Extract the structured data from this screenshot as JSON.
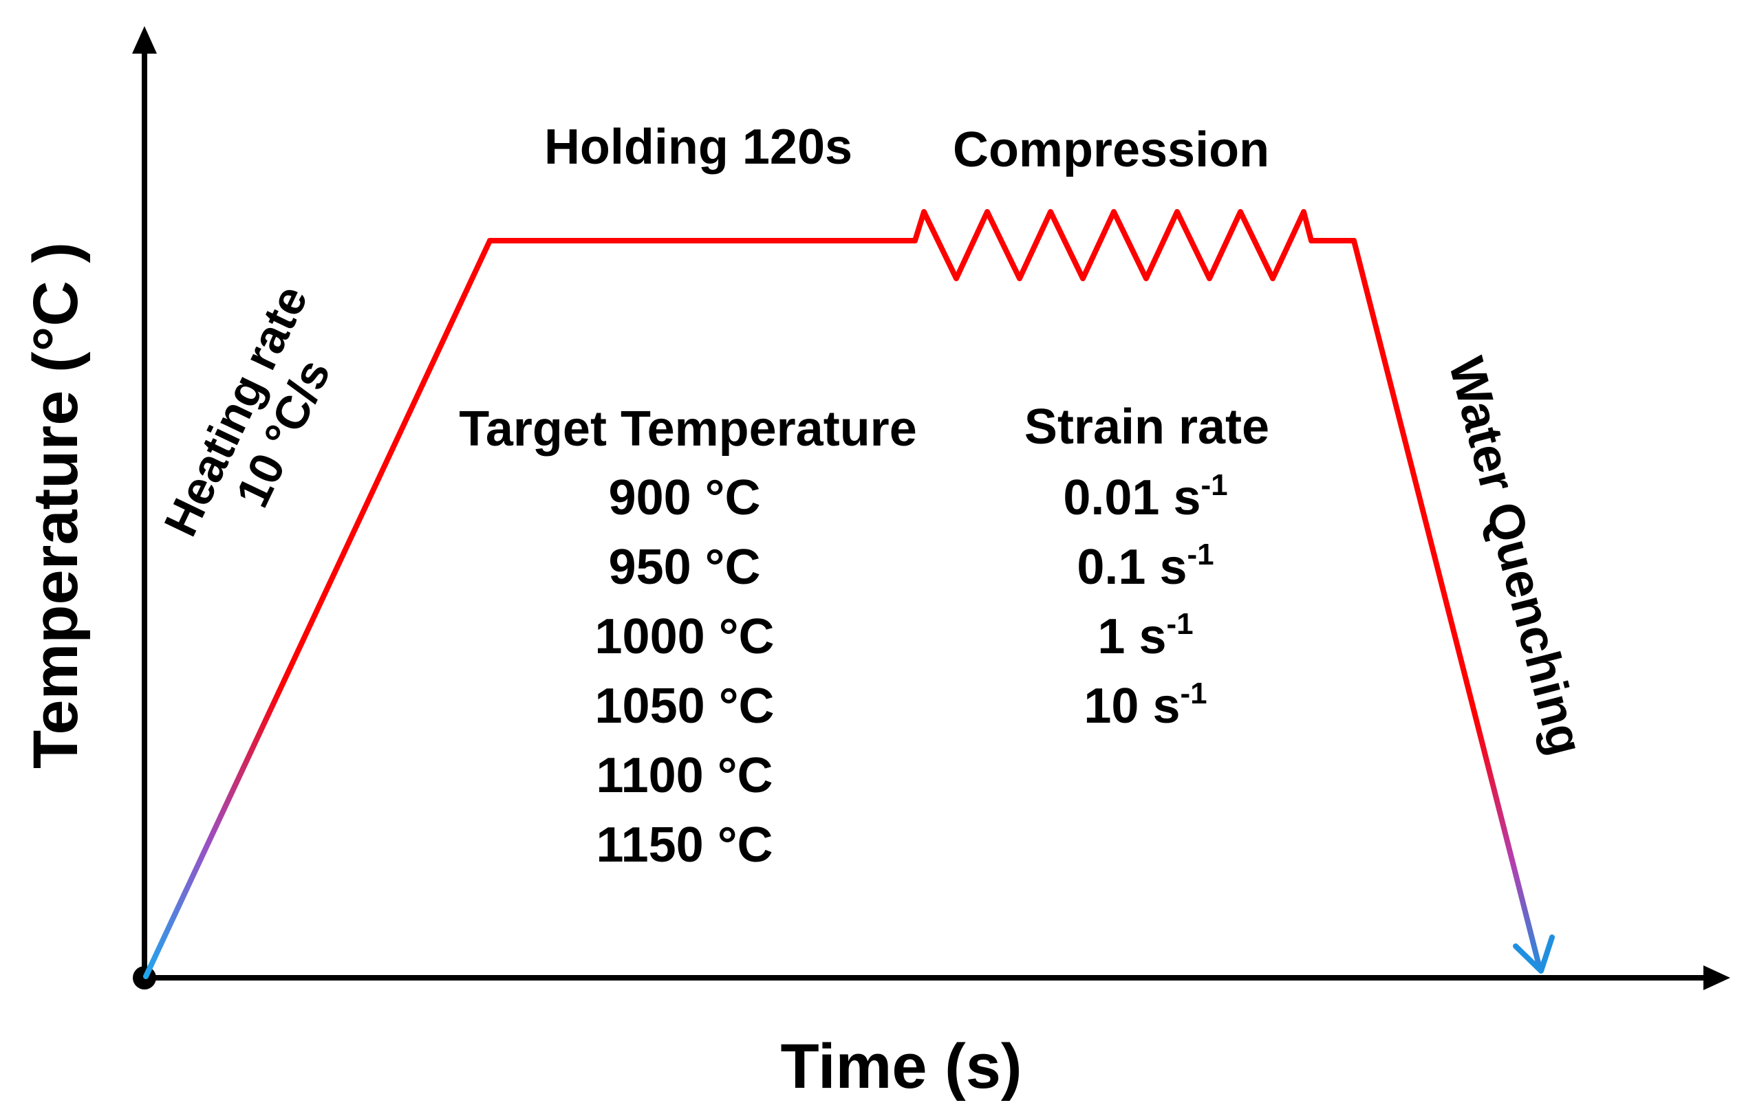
{
  "axes": {
    "x_label": "Time (s)",
    "y_label": "Temperature (°C )"
  },
  "stages": {
    "heating_line1": "Heating rate",
    "heating_line2": "10 °C/s",
    "holding": "Holding 120s",
    "compression": "Compression",
    "quenching": "Water Quenching"
  },
  "target_temperature": {
    "header": "Target Temperature",
    "values": [
      "900 °C",
      "950 °C",
      "1000 °C",
      "1050 °C",
      "1100 °C",
      "1150 °C"
    ]
  },
  "strain_rate": {
    "header": "Strain rate",
    "unit": "s",
    "exponent": "-1",
    "values": [
      "0.01",
      "0.1",
      "1",
      "10"
    ]
  },
  "colors": {
    "process_line": "#ff0000",
    "gradient_mid": "#9b4fc4",
    "gradient_end": "#1fa6ee",
    "axis": "#000000"
  }
}
